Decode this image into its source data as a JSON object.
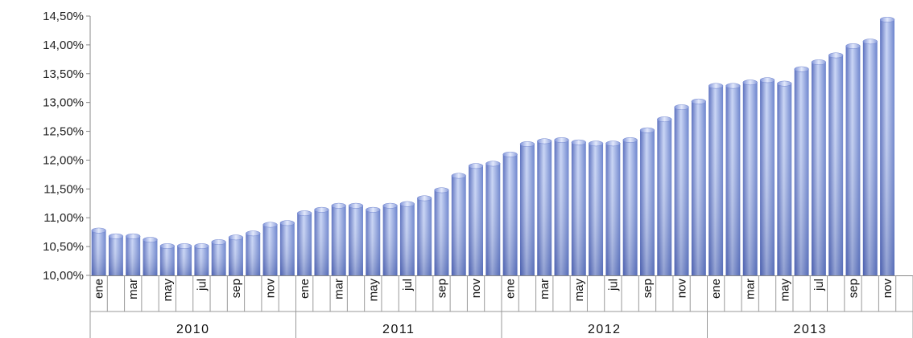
{
  "chart_data": {
    "type": "bar",
    "title": "",
    "xlabel": "",
    "ylabel": "",
    "ylim": [
      10.0,
      14.5
    ],
    "y_ticks": [
      "10,00%",
      "10,50%",
      "11,00%",
      "11,50%",
      "12,00%",
      "12,50%",
      "13,00%",
      "13,50%",
      "14,00%",
      "14,50%"
    ],
    "month_labels": [
      "ene",
      "",
      "mar",
      "",
      "may",
      "",
      "jul",
      "",
      "sep",
      "",
      "nov",
      ""
    ],
    "years": [
      "2010",
      "2011",
      "2012",
      "2013"
    ],
    "categories": [
      "ene 2010",
      "feb 2010",
      "mar 2010",
      "abr 2010",
      "may 2010",
      "jun 2010",
      "jul 2010",
      "ago 2010",
      "sep 2010",
      "oct 2010",
      "nov 2010",
      "dic 2010",
      "ene 2011",
      "feb 2011",
      "mar 2011",
      "abr 2011",
      "may 2011",
      "jun 2011",
      "jul 2011",
      "ago 2011",
      "sep 2011",
      "oct 2011",
      "nov 2011",
      "dic 2011",
      "ene 2012",
      "feb 2012",
      "mar 2012",
      "abr 2012",
      "may 2012",
      "jun 2012",
      "jul 2012",
      "ago 2012",
      "sep 2012",
      "oct 2012",
      "nov 2012",
      "dic 2012",
      "ene 2013",
      "feb 2013",
      "mar 2013",
      "abr 2013",
      "may 2013",
      "jun 2013",
      "jul 2013",
      "ago 2013",
      "sep 2013",
      "oct 2013",
      "nov 2013"
    ],
    "values": [
      10.82,
      10.72,
      10.72,
      10.66,
      10.55,
      10.55,
      10.55,
      10.62,
      10.7,
      10.77,
      10.92,
      10.95,
      11.12,
      11.18,
      11.25,
      11.25,
      11.18,
      11.25,
      11.28,
      11.38,
      11.52,
      11.77,
      11.94,
      11.98,
      12.14,
      12.32,
      12.37,
      12.39,
      12.35,
      12.33,
      12.33,
      12.39,
      12.56,
      12.75,
      12.96,
      13.06,
      13.33,
      13.33,
      13.39,
      13.43,
      13.37,
      13.62,
      13.74,
      13.86,
      14.02,
      14.1,
      14.48
    ],
    "bar_color": "#7b93d6",
    "grid": false,
    "legend": "none"
  }
}
